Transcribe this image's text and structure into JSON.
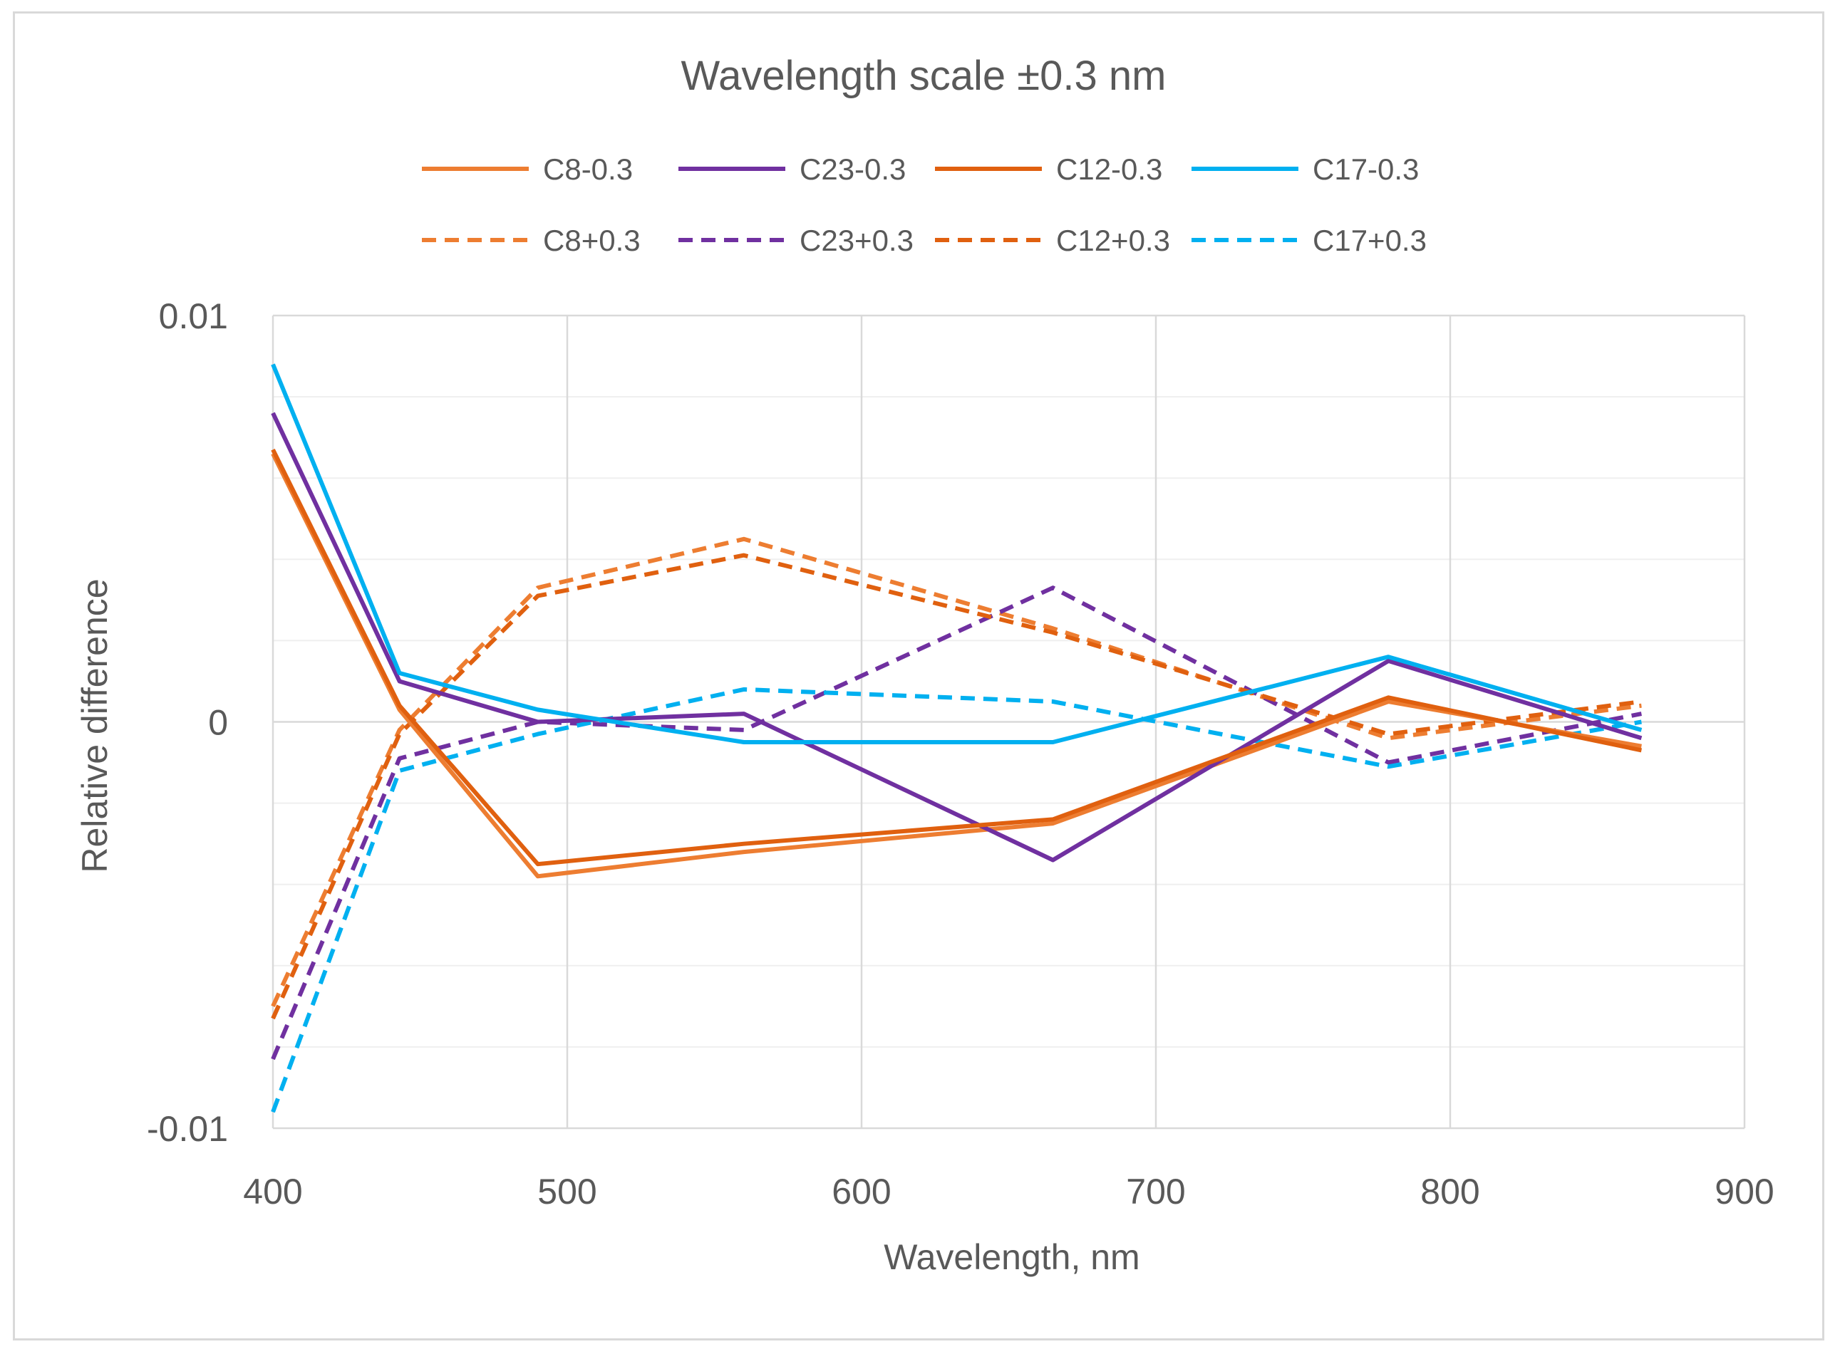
{
  "chart_data": {
    "type": "line",
    "title": "Wavelength scale ±0.3 nm",
    "xlabel": "Wavelength, nm",
    "ylabel": "Relative difference",
    "xlim": [
      400,
      900
    ],
    "ylim": [
      -0.01,
      0.01
    ],
    "x_ticks": [
      400,
      500,
      600,
      700,
      800,
      900
    ],
    "x_tick_labels": [
      "400",
      "500",
      "600",
      "700",
      "800",
      "900"
    ],
    "y_ticks": [
      -0.01,
      0,
      0.01
    ],
    "y_tick_labels": [
      "-0.01",
      "0",
      "0.01"
    ],
    "y_minor_gridlines": [
      -0.008,
      -0.006,
      -0.004,
      -0.002,
      0.002,
      0.004,
      0.006,
      0.008
    ],
    "x": [
      400,
      443,
      490,
      560,
      665,
      779,
      865
    ],
    "legend_position": "top",
    "series": [
      {
        "name": "C8-0.3",
        "color": "#ed7d31",
        "dash": "solid",
        "values": [
          0.0066,
          0.0003,
          -0.0038,
          -0.0032,
          -0.0025,
          0.0005,
          -0.0006
        ]
      },
      {
        "name": "C23-0.3",
        "color": "#7030a0",
        "dash": "solid",
        "values": [
          0.0076,
          0.001,
          0.0,
          0.0002,
          -0.0034,
          0.0015,
          -0.0004
        ]
      },
      {
        "name": "C12-0.3",
        "color": "#e0600f",
        "dash": "solid",
        "values": [
          0.0067,
          0.0004,
          -0.0035,
          -0.003,
          -0.0024,
          0.0006,
          -0.0007
        ]
      },
      {
        "name": "C17-0.3",
        "color": "#00b0f0",
        "dash": "solid",
        "values": [
          0.0088,
          0.0012,
          0.0003,
          -0.0005,
          -0.0005,
          0.0016,
          -0.0002
        ]
      },
      {
        "name": "C8+0.3",
        "color": "#ed7d31",
        "dash": "dashed",
        "values": [
          -0.007,
          -0.0002,
          0.0033,
          0.0045,
          0.0023,
          -0.0004,
          0.0004
        ]
      },
      {
        "name": "C23+0.3",
        "color": "#7030a0",
        "dash": "dashed",
        "values": [
          -0.0083,
          -0.0009,
          0.0,
          -0.0002,
          0.0033,
          -0.001,
          0.0002
        ]
      },
      {
        "name": "C12+0.3",
        "color": "#e0600f",
        "dash": "dashed",
        "values": [
          -0.0073,
          -0.0003,
          0.0031,
          0.0041,
          0.0022,
          -0.0003,
          0.0005
        ]
      },
      {
        "name": "C17+0.3",
        "color": "#00b0f0",
        "dash": "dashed",
        "values": [
          -0.0096,
          -0.0012,
          -0.0003,
          0.0008,
          0.0005,
          -0.0011,
          0.0
        ]
      }
    ]
  }
}
